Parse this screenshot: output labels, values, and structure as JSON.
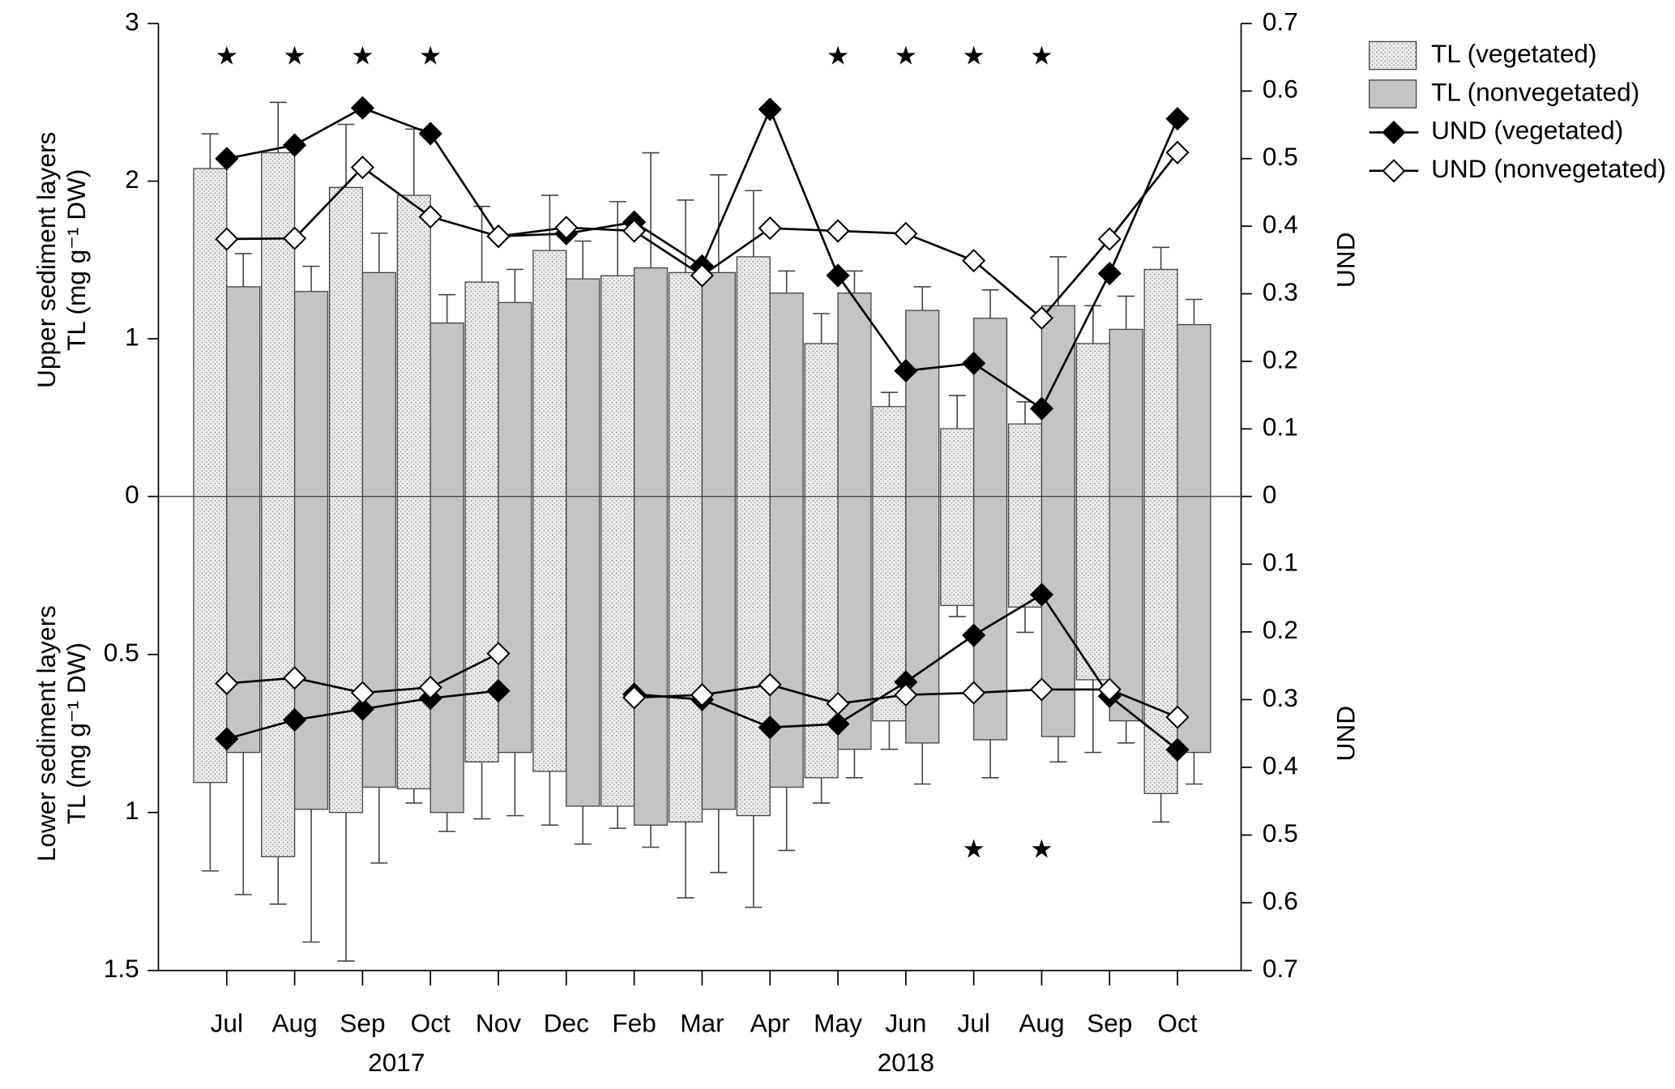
{
  "chart_data": [
    {
      "type": "bar",
      "categories": [
        "Jul",
        "Aug",
        "Sep",
        "Oct",
        "Nov",
        "Dec",
        "Feb",
        "Mar",
        "Apr",
        "May",
        "Jun",
        "Jul",
        "Aug",
        "Sep",
        "Oct"
      ],
      "x_group_labels": [
        "2017",
        "2018"
      ],
      "ylabel": [
        "Upper sediment layers",
        "TL (mg g⁻¹ DW)"
      ],
      "y2label": "UND",
      "ylim": [
        0,
        3
      ],
      "yticks": [
        0,
        1,
        2,
        3
      ],
      "y2lim": [
        0,
        0.7
      ],
      "y2ticks": [
        0,
        0.1,
        0.2,
        0.3,
        0.4,
        0.5,
        0.6,
        0.7
      ],
      "significance": [
        "★",
        "★",
        "★",
        "★",
        null,
        null,
        null,
        null,
        null,
        "★",
        "★",
        "★",
        "★",
        null,
        null
      ],
      "series": [
        {
          "name": "TL (vegetated)",
          "color": "#efefef",
          "pattern": "dots",
          "values": [
            2.08,
            2.18,
            1.96,
            1.91,
            1.36,
            1.56,
            1.4,
            1.42,
            1.52,
            0.97,
            0.57,
            0.43,
            0.46,
            0.97,
            1.44
          ],
          "errors": [
            0.22,
            0.32,
            0.4,
            0.42,
            0.48,
            0.35,
            0.47,
            0.46,
            0.42,
            0.19,
            0.09,
            0.21,
            0.14,
            0.24,
            0.14
          ]
        },
        {
          "name": "TL (nonvegetated)",
          "color": "#c4c4c4",
          "values": [
            1.33,
            1.3,
            1.42,
            1.1,
            1.23,
            1.38,
            1.45,
            1.42,
            1.29,
            1.29,
            1.18,
            1.13,
            1.21,
            1.06,
            1.09
          ],
          "errors": [
            0.21,
            0.16,
            0.25,
            0.18,
            0.21,
            0.24,
            0.73,
            0.62,
            0.14,
            0.14,
            0.15,
            0.18,
            0.31,
            0.21,
            0.16
          ]
        },
        {
          "name": "UND (vegetated)",
          "type": "line",
          "axis": "y2",
          "color": "#000000",
          "marker_fill": "#000000",
          "values": [
            0.5,
            0.52,
            0.575,
            0.537,
            0.385,
            0.389,
            0.406,
            0.341,
            0.573,
            0.327,
            0.186,
            0.197,
            0.13,
            0.33,
            0.559
          ]
        },
        {
          "name": "UND (nonvegetated)",
          "type": "line",
          "axis": "y2",
          "color": "#000000",
          "marker_fill": "#ffffff",
          "values": [
            0.381,
            0.382,
            0.487,
            0.414,
            0.385,
            0.398,
            0.393,
            0.327,
            0.397,
            0.393,
            0.389,
            0.349,
            0.264,
            0.381,
            0.509
          ]
        }
      ]
    },
    {
      "type": "bar",
      "y_inverted": true,
      "ylabel": [
        "Lower sediment layers",
        "TL (mg g⁻¹ DW)"
      ],
      "y2label": "UND",
      "ylim": [
        0,
        1.5
      ],
      "yticks": [
        0.5,
        1,
        1.5
      ],
      "y2lim": [
        0,
        0.7
      ],
      "y2ticks": [
        0.1,
        0.2,
        0.3,
        0.4,
        0.5,
        0.6,
        0.7
      ],
      "significance": [
        null,
        null,
        null,
        null,
        null,
        null,
        null,
        null,
        null,
        null,
        null,
        "★",
        "★",
        null,
        null
      ],
      "series": [
        {
          "color": "#efefef",
          "pattern": "dots",
          "values": [
            0.905,
            1.14,
            1.0,
            0.925,
            0.84,
            0.87,
            0.98,
            1.03,
            1.01,
            0.89,
            0.71,
            0.345,
            0.35,
            0.58,
            0.94
          ],
          "errors": [
            0.28,
            0.15,
            0.47,
            0.045,
            0.18,
            0.17,
            0.07,
            0.24,
            0.29,
            0.08,
            0.09,
            0.035,
            0.08,
            0.23,
            0.09
          ]
        },
        {
          "color": "#c4c4c4",
          "values": [
            0.81,
            0.99,
            0.92,
            1.0,
            0.81,
            0.98,
            1.04,
            0.99,
            0.92,
            0.8,
            0.78,
            0.77,
            0.76,
            0.71,
            0.81
          ],
          "errors": [
            0.45,
            0.42,
            0.24,
            0.06,
            0.2,
            0.12,
            0.07,
            0.2,
            0.2,
            0.09,
            0.13,
            0.12,
            0.08,
            0.07,
            0.1
          ]
        },
        {
          "type": "line",
          "axis": "y2",
          "color": "#000000",
          "marker_fill": "#000000",
          "values": [
            0.358,
            0.33,
            0.314,
            0.298,
            0.287,
            null,
            0.292,
            0.3,
            0.341,
            0.336,
            0.274,
            0.205,
            0.145,
            0.295,
            0.374
          ]
        },
        {
          "type": "line",
          "axis": "y2",
          "color": "#000000",
          "marker_fill": "#ffffff",
          "values": [
            0.276,
            0.268,
            0.29,
            0.282,
            0.232,
            null,
            0.297,
            0.293,
            0.278,
            0.306,
            0.293,
            0.29,
            0.285,
            0.285,
            0.326
          ]
        }
      ]
    }
  ]
}
